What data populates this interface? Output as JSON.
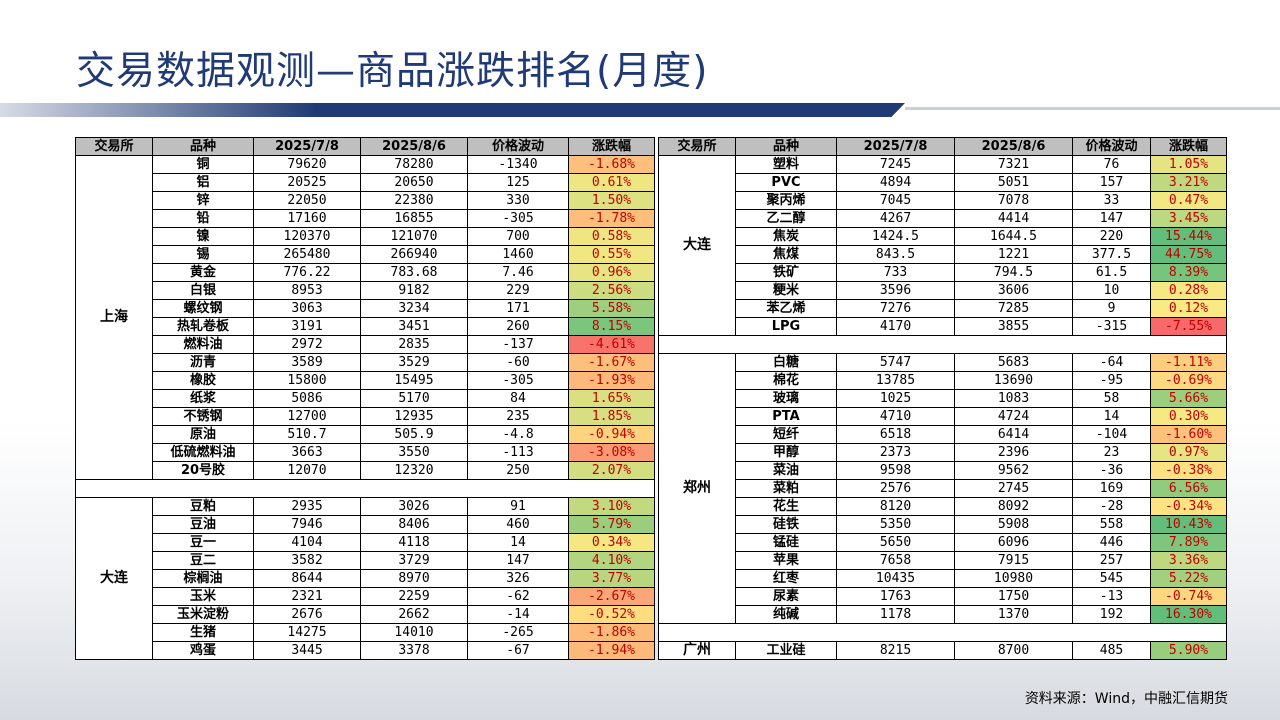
{
  "title": "交易数据观测—商品涨跌排名(月度)",
  "source": "资料来源：Wind，中融汇信期货",
  "headers": [
    "交易所",
    "品种",
    "2025/7/8",
    "2025/8/6",
    "价格波动",
    "涨跌幅"
  ],
  "colors": {
    "title": "#1f3a74",
    "header_bg": "#bfbfbf",
    "neg": "#f8696b",
    "zero": "#ffeb84",
    "pos": "#63be7b",
    "pct_text": "#c00000"
  },
  "left_blocks": [
    {
      "exchange": "上海",
      "rows": [
        [
          "铜",
          "79620",
          "78280",
          "-1340",
          "-1.68%",
          -1.68
        ],
        [
          "铝",
          "20525",
          "20650",
          "125",
          "0.61%",
          0.61
        ],
        [
          "锌",
          "22050",
          "22380",
          "330",
          "1.50%",
          1.5
        ],
        [
          "铅",
          "17160",
          "16855",
          "-305",
          "-1.78%",
          -1.78
        ],
        [
          "镍",
          "120370",
          "121070",
          "700",
          "0.58%",
          0.58
        ],
        [
          "锡",
          "265480",
          "266940",
          "1460",
          "0.55%",
          0.55
        ],
        [
          "黄金",
          "776.22",
          "783.68",
          "7.46",
          "0.96%",
          0.96
        ],
        [
          "白银",
          "8953",
          "9182",
          "229",
          "2.56%",
          2.56
        ],
        [
          "螺纹钢",
          "3063",
          "3234",
          "171",
          "5.58%",
          5.58
        ],
        [
          "热轧卷板",
          "3191",
          "3451",
          "260",
          "8.15%",
          8.15
        ],
        [
          "燃料油",
          "2972",
          "2835",
          "-137",
          "-4.61%",
          -4.61
        ],
        [
          "沥青",
          "3589",
          "3529",
          "-60",
          "-1.67%",
          -1.67
        ],
        [
          "橡胶",
          "15800",
          "15495",
          "-305",
          "-1.93%",
          -1.93
        ],
        [
          "纸浆",
          "5086",
          "5170",
          "84",
          "1.65%",
          1.65
        ],
        [
          "不锈钢",
          "12700",
          "12935",
          "235",
          "1.85%",
          1.85
        ],
        [
          "原油",
          "510.7",
          "505.9",
          "-4.8",
          "-0.94%",
          -0.94
        ],
        [
          "低硫燃料油",
          "3663",
          "3550",
          "-113",
          "-3.08%",
          -3.08
        ],
        [
          "20号胶",
          "12070",
          "12320",
          "250",
          "2.07%",
          2.07
        ]
      ]
    },
    {
      "exchange": "大连",
      "rows": [
        [
          "豆粕",
          "2935",
          "3026",
          "91",
          "3.10%",
          3.1
        ],
        [
          "豆油",
          "7946",
          "8406",
          "460",
          "5.79%",
          5.79
        ],
        [
          "豆一",
          "4104",
          "4118",
          "14",
          "0.34%",
          0.34
        ],
        [
          "豆二",
          "3582",
          "3729",
          "147",
          "4.10%",
          4.1
        ],
        [
          "棕榈油",
          "8644",
          "8970",
          "326",
          "3.77%",
          3.77
        ],
        [
          "玉米",
          "2321",
          "2259",
          "-62",
          "-2.67%",
          -2.67
        ],
        [
          "玉米淀粉",
          "2676",
          "2662",
          "-14",
          "-0.52%",
          -0.52
        ],
        [
          "生猪",
          "14275",
          "14010",
          "-265",
          "-1.86%",
          -1.86
        ],
        [
          "鸡蛋",
          "3445",
          "3378",
          "-67",
          "-1.94%",
          -1.94
        ]
      ]
    }
  ],
  "right_blocks": [
    {
      "exchange": "大连",
      "rows": [
        [
          "塑料",
          "7245",
          "7321",
          "76",
          "1.05%",
          1.05
        ],
        [
          "PVC",
          "4894",
          "5051",
          "157",
          "3.21%",
          3.21
        ],
        [
          "聚丙烯",
          "7045",
          "7078",
          "33",
          "0.47%",
          0.47
        ],
        [
          "乙二醇",
          "4267",
          "4414",
          "147",
          "3.45%",
          3.45
        ],
        [
          "焦炭",
          "1424.5",
          "1644.5",
          "220",
          "15.44%",
          15.44
        ],
        [
          "焦煤",
          "843.5",
          "1221",
          "377.5",
          "44.75%",
          44.75
        ],
        [
          "铁矿",
          "733",
          "794.5",
          "61.5",
          "8.39%",
          8.39
        ],
        [
          "粳米",
          "3596",
          "3606",
          "10",
          "0.28%",
          0.28
        ],
        [
          "苯乙烯",
          "7276",
          "7285",
          "9",
          "0.12%",
          0.12
        ],
        [
          "LPG",
          "4170",
          "3855",
          "-315",
          "-7.55%",
          -7.55
        ]
      ]
    },
    {
      "exchange": "郑州",
      "rows": [
        [
          "白糖",
          "5747",
          "5683",
          "-64",
          "-1.11%",
          -1.11
        ],
        [
          "棉花",
          "13785",
          "13690",
          "-95",
          "-0.69%",
          -0.69
        ],
        [
          "玻璃",
          "1025",
          "1083",
          "58",
          "5.66%",
          5.66
        ],
        [
          "PTA",
          "4710",
          "4724",
          "14",
          "0.30%",
          0.3
        ],
        [
          "短纤",
          "6518",
          "6414",
          "-104",
          "-1.60%",
          -1.6
        ],
        [
          "甲醇",
          "2373",
          "2396",
          "23",
          "0.97%",
          0.97
        ],
        [
          "菜油",
          "9598",
          "9562",
          "-36",
          "-0.38%",
          -0.38
        ],
        [
          "菜粕",
          "2576",
          "2745",
          "169",
          "6.56%",
          6.56
        ],
        [
          "花生",
          "8120",
          "8092",
          "-28",
          "-0.34%",
          -0.34
        ],
        [
          "硅铁",
          "5350",
          "5908",
          "558",
          "10.43%",
          10.43
        ],
        [
          "锰硅",
          "5650",
          "6096",
          "446",
          "7.89%",
          7.89
        ],
        [
          "苹果",
          "7658",
          "7915",
          "257",
          "3.36%",
          3.36
        ],
        [
          "红枣",
          "10435",
          "10980",
          "545",
          "5.22%",
          5.22
        ],
        [
          "尿素",
          "1763",
          "1750",
          "-13",
          "-0.74%",
          -0.74
        ],
        [
          "纯碱",
          "1178",
          "1370",
          "192",
          "16.30%",
          16.3
        ]
      ]
    },
    {
      "exchange": "广州",
      "rows": [
        [
          "工业硅",
          "8215",
          "8700",
          "485",
          "5.90%",
          5.9
        ]
      ]
    }
  ]
}
